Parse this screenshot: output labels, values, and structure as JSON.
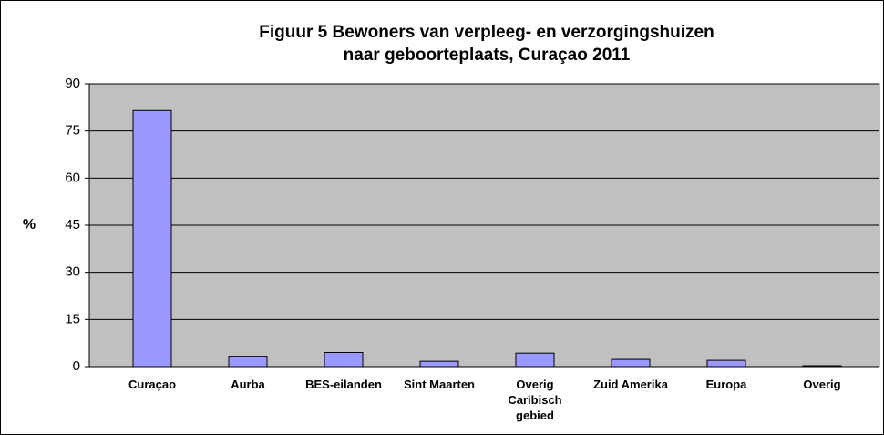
{
  "chart_data": {
    "type": "bar",
    "title": [
      "Figuur 5 Bewoners van verpleeg- en verzorgingshuizen",
      "naar geboorteplaats, Curaçao 2011"
    ],
    "ylabel": "%",
    "categories": [
      "Curaçao",
      "Aurba",
      "BES-eilanden",
      "Sint Maarten",
      "Overig Caribisch gebied",
      "Zuid Amerika",
      "Europa",
      "Overig"
    ],
    "values": [
      81.5,
      3.3,
      4.5,
      1.7,
      4.3,
      2.3,
      2.0,
      0.3
    ],
    "color": "#9999ff",
    "ylim": [
      0,
      90
    ],
    "yticks": [
      0,
      15,
      30,
      45,
      60,
      75,
      90
    ],
    "grid": true
  }
}
